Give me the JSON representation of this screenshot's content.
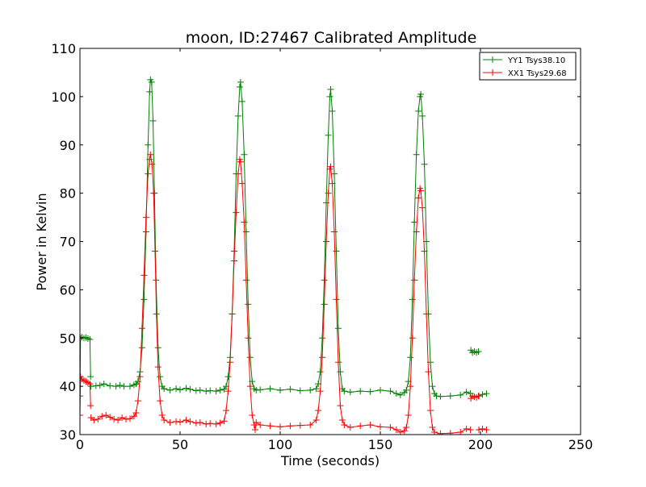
{
  "chart_data": {
    "type": "line",
    "title": "moon, ID:27467 Calibrated Amplitude",
    "xlabel": "Time (seconds)",
    "ylabel": "Power in Kelvin",
    "xlim": [
      0,
      250
    ],
    "ylim": [
      30,
      110
    ],
    "xticks": [
      0,
      50,
      100,
      150,
      200,
      250
    ],
    "yticks": [
      30,
      40,
      50,
      60,
      70,
      80,
      90,
      100,
      110
    ],
    "grid": false,
    "legend_position": "top-right",
    "marker": "plus",
    "series": [
      {
        "name": "YY1 Tsys38.10",
        "color": "#008000",
        "segments": [
          [
            [
              0,
              38
            ],
            [
              0.3,
              50
            ],
            [
              1,
              50.2
            ],
            [
              2,
              50
            ],
            [
              3,
              50.1
            ],
            [
              4,
              49.9
            ],
            [
              5,
              49.7
            ],
            [
              5.3,
              42
            ]
          ],
          [
            [
              5.5,
              40
            ],
            [
              8,
              40.1
            ],
            [
              10,
              40.2
            ],
            [
              12,
              40.5
            ],
            [
              15,
              40.1
            ],
            [
              18,
              40
            ],
            [
              20,
              40.2
            ],
            [
              22,
              40
            ],
            [
              25,
              40
            ],
            [
              27,
              40.3
            ],
            [
              28,
              40.5
            ],
            [
              29,
              41
            ],
            [
              30,
              43
            ],
            [
              31,
              48
            ],
            [
              32,
              58
            ],
            [
              33,
              72
            ],
            [
              34,
              90
            ],
            [
              34.8,
              101
            ],
            [
              35.2,
              103.5
            ],
            [
              35.8,
              103
            ],
            [
              36.5,
              95
            ],
            [
              37.2,
              80
            ],
            [
              38,
              62
            ],
            [
              39,
              48
            ],
            [
              40,
              42
            ],
            [
              41,
              40
            ],
            [
              42,
              39.5
            ],
            [
              45,
              39.2
            ],
            [
              48,
              39.5
            ],
            [
              50,
              39.3
            ],
            [
              53,
              39.6
            ],
            [
              55,
              39.4
            ],
            [
              58,
              39.1
            ],
            [
              60,
              39.2
            ],
            [
              63,
              39
            ],
            [
              65,
              39.1
            ],
            [
              68,
              39
            ],
            [
              70,
              39.2
            ],
            [
              72,
              39.4
            ],
            [
              73,
              40
            ],
            [
              74,
              42
            ],
            [
              75,
              46
            ],
            [
              76,
              55
            ],
            [
              77,
              68
            ],
            [
              78,
              84
            ],
            [
              79,
              96
            ],
            [
              79.8,
              102
            ],
            [
              80.2,
              103
            ],
            [
              81,
              99
            ],
            [
              82,
              88
            ],
            [
              83,
              72
            ],
            [
              84,
              57
            ],
            [
              85,
              46
            ],
            [
              86,
              41
            ],
            [
              87,
              39.5
            ],
            [
              88,
              39.2
            ],
            [
              90,
              39.3
            ],
            [
              95,
              39.5
            ],
            [
              100,
              39.2
            ],
            [
              105,
              39.4
            ],
            [
              110,
              39.1
            ],
            [
              115,
              39.2
            ],
            [
              118,
              39.5
            ],
            [
              119,
              40.5
            ],
            [
              120,
              43
            ],
            [
              121,
              50
            ],
            [
              122,
              62
            ],
            [
              123,
              78
            ],
            [
              124,
              92
            ],
            [
              124.8,
              100
            ],
            [
              125.2,
              101.5
            ],
            [
              126,
              97
            ],
            [
              127,
              84
            ],
            [
              128,
              68
            ],
            [
              129,
              52
            ],
            [
              130,
              43
            ],
            [
              131,
              39.5
            ],
            [
              132,
              39
            ],
            [
              135,
              38.8
            ],
            [
              140,
              39
            ],
            [
              145,
              38.9
            ],
            [
              150,
              39.2
            ],
            [
              155,
              39
            ],
            [
              158,
              38.5
            ],
            [
              160,
              38.2
            ],
            [
              162,
              38.7
            ],
            [
              163,
              39.2
            ],
            [
              164,
              41
            ],
            [
              165,
              46
            ],
            [
              166,
              58
            ],
            [
              167,
              74
            ],
            [
              168,
              88
            ],
            [
              169,
              97
            ],
            [
              169.8,
              100
            ],
            [
              170.2,
              100.5
            ],
            [
              171,
              96
            ],
            [
              172,
              86
            ],
            [
              173,
              70
            ],
            [
              174,
              55
            ],
            [
              175,
              45
            ],
            [
              176,
              40
            ],
            [
              177,
              38.5
            ],
            [
              178,
              38
            ],
            [
              180,
              37.9
            ],
            [
              185,
              38
            ],
            [
              190,
              38.2
            ],
            [
              193,
              38.8
            ],
            [
              195,
              38.5
            ]
          ],
          [
            [
              195.2,
              47.5
            ],
            [
              196,
              47
            ],
            [
              197,
              47.2
            ],
            [
              198,
              47
            ],
            [
              199,
              47.2
            ]
          ],
          [
            [
              199.2,
              38
            ],
            [
              201,
              38.3
            ],
            [
              203,
              38.5
            ]
          ]
        ]
      },
      {
        "name": "XX1 Tsys29.68",
        "color": "#ff0000",
        "segments": [
          [
            [
              0,
              34
            ],
            [
              0.3,
              42
            ],
            [
              1,
              41.5
            ],
            [
              2,
              41.2
            ],
            [
              3,
              41
            ],
            [
              4,
              40.8
            ],
            [
              5,
              40.5
            ],
            [
              5.3,
              36
            ]
          ],
          [
            [
              5.5,
              33.5
            ],
            [
              7,
              33
            ],
            [
              9,
              33.2
            ],
            [
              11,
              33.8
            ],
            [
              13,
              34
            ],
            [
              15,
              33.6
            ],
            [
              17,
              33.2
            ],
            [
              19,
              33
            ],
            [
              21,
              33.5
            ],
            [
              23,
              33.2
            ],
            [
              25,
              33.3
            ],
            [
              27,
              33.8
            ],
            [
              28,
              34.5
            ],
            [
              29,
              37
            ],
            [
              30,
              42
            ],
            [
              31,
              52
            ],
            [
              32,
              63
            ],
            [
              33,
              75
            ],
            [
              34,
              84
            ],
            [
              34.8,
              87
            ],
            [
              35.2,
              88
            ],
            [
              36,
              86
            ],
            [
              36.8,
              80
            ],
            [
              37.5,
              68
            ],
            [
              38.2,
              55
            ],
            [
              39,
              44
            ],
            [
              40,
              37
            ],
            [
              41,
              34
            ],
            [
              42,
              33
            ],
            [
              45,
              32.5
            ],
            [
              48,
              32.7
            ],
            [
              50,
              32.6
            ],
            [
              53,
              33
            ],
            [
              55,
              32.7
            ],
            [
              58,
              32.4
            ],
            [
              60,
              32.5
            ],
            [
              63,
              32.2
            ],
            [
              65,
              32.3
            ],
            [
              68,
              32.2
            ],
            [
              70,
              32.4
            ],
            [
              72,
              32.8
            ],
            [
              73,
              35
            ],
            [
              74,
              39
            ],
            [
              75,
              45
            ],
            [
              76,
              55
            ],
            [
              77,
              66
            ],
            [
              78,
              76
            ],
            [
              79,
              84
            ],
            [
              79.8,
              87
            ],
            [
              80.2,
              86.5
            ],
            [
              81,
              82
            ],
            [
              82,
              74
            ],
            [
              83,
              62
            ],
            [
              84,
              50
            ],
            [
              85,
              40
            ],
            [
              86,
              34
            ],
            [
              87,
              32
            ],
            [
              87.5,
              31
            ],
            [
              88,
              32.5
            ],
            [
              90,
              32
            ],
            [
              95,
              31.8
            ],
            [
              100,
              31.6
            ],
            [
              105,
              31.8
            ],
            [
              110,
              31.9
            ],
            [
              115,
              32
            ],
            [
              118,
              33
            ],
            [
              119,
              35
            ],
            [
              120,
              39
            ],
            [
              121,
              46
            ],
            [
              122,
              57
            ],
            [
              123,
              70
            ],
            [
              124,
              80
            ],
            [
              124.8,
              85
            ],
            [
              125.2,
              85.5
            ],
            [
              126,
              82
            ],
            [
              127,
              72
            ],
            [
              128,
              58
            ],
            [
              129,
              45
            ],
            [
              130,
              36
            ],
            [
              131,
              33
            ],
            [
              132,
              32
            ],
            [
              135,
              31.5
            ],
            [
              140,
              31.8
            ],
            [
              145,
              32
            ],
            [
              150,
              31.6
            ],
            [
              155,
              31.5
            ],
            [
              158,
              31
            ],
            [
              160,
              30.5
            ],
            [
              162,
              30.8
            ],
            [
              163,
              31.5
            ],
            [
              164,
              34
            ],
            [
              165,
              40
            ],
            [
              166,
              50
            ],
            [
              167,
              62
            ],
            [
              168,
              72
            ],
            [
              169,
              79
            ],
            [
              169.8,
              81
            ],
            [
              170.2,
              80.5
            ],
            [
              171,
              77
            ],
            [
              172,
              68
            ],
            [
              173,
              55
            ],
            [
              174,
              43
            ],
            [
              175,
              35
            ],
            [
              176,
              31.5
            ],
            [
              177,
              30.5
            ],
            [
              180,
              30.2
            ],
            [
              185,
              30.3
            ],
            [
              190,
              30.5
            ],
            [
              193,
              31.2
            ],
            [
              195,
              31
            ]
          ],
          [
            [
              195.2,
              37.5
            ],
            [
              196,
              38
            ],
            [
              197,
              37.8
            ],
            [
              198,
              37.7
            ],
            [
              199,
              38
            ]
          ],
          [
            [
              199.2,
              31
            ],
            [
              201,
              31.2
            ],
            [
              203,
              31
            ]
          ]
        ]
      }
    ]
  }
}
